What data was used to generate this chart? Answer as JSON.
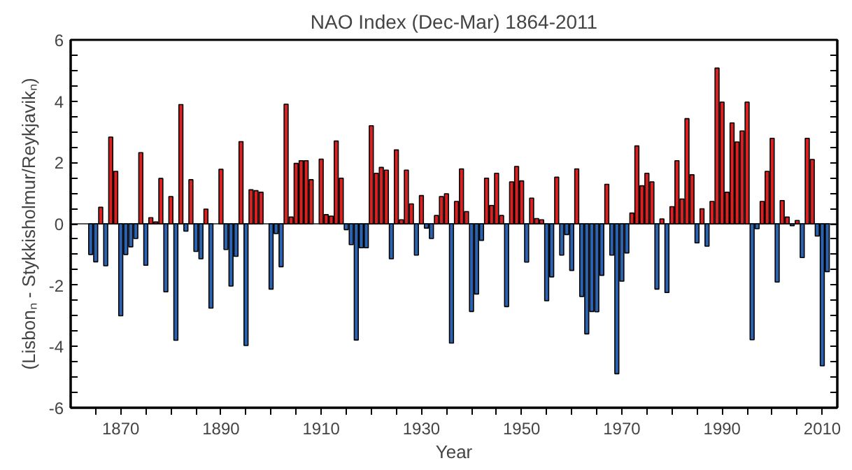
{
  "chart_data": {
    "type": "bar",
    "title": "NAO Index (Dec-Mar) 1864-2011",
    "xlabel": "Year",
    "ylabel": "(Lisbonₙ - Stykkisholmur/Reykjavikₙ)",
    "x": [
      1864,
      1865,
      1866,
      1867,
      1868,
      1869,
      1870,
      1871,
      1872,
      1873,
      1874,
      1875,
      1876,
      1877,
      1878,
      1879,
      1880,
      1881,
      1882,
      1883,
      1884,
      1885,
      1886,
      1887,
      1888,
      1889,
      1890,
      1891,
      1892,
      1893,
      1894,
      1895,
      1896,
      1897,
      1898,
      1899,
      1900,
      1901,
      1902,
      1903,
      1904,
      1905,
      1906,
      1907,
      1908,
      1909,
      1910,
      1911,
      1912,
      1913,
      1914,
      1915,
      1916,
      1917,
      1918,
      1919,
      1920,
      1921,
      1922,
      1923,
      1924,
      1925,
      1926,
      1927,
      1928,
      1929,
      1930,
      1931,
      1932,
      1933,
      1934,
      1935,
      1936,
      1937,
      1938,
      1939,
      1940,
      1941,
      1942,
      1943,
      1944,
      1945,
      1946,
      1947,
      1948,
      1949,
      1950,
      1951,
      1952,
      1953,
      1954,
      1955,
      1956,
      1957,
      1958,
      1959,
      1960,
      1961,
      1962,
      1963,
      1964,
      1965,
      1966,
      1967,
      1968,
      1969,
      1970,
      1971,
      1972,
      1973,
      1974,
      1975,
      1976,
      1977,
      1978,
      1979,
      1980,
      1981,
      1982,
      1983,
      1984,
      1985,
      1986,
      1987,
      1988,
      1989,
      1990,
      1991,
      1992,
      1993,
      1994,
      1995,
      1996,
      1997,
      1998,
      1999,
      2000,
      2001,
      2002,
      2003,
      2004,
      2005,
      2006,
      2007,
      2008,
      2009,
      2010,
      2011
    ],
    "values": [
      -1.0,
      -1.24,
      0.54,
      -1.37,
      2.83,
      1.71,
      -3.0,
      -1.0,
      -0.75,
      -0.48,
      2.32,
      -1.35,
      0.2,
      0.06,
      1.48,
      -2.22,
      0.89,
      -3.8,
      3.89,
      -0.24,
      1.44,
      -0.9,
      -1.14,
      0.48,
      -2.75,
      null,
      1.78,
      -0.84,
      -2.03,
      -1.06,
      2.68,
      -3.97,
      1.11,
      1.08,
      1.03,
      null,
      -2.13,
      -0.32,
      -1.4,
      3.9,
      0.22,
      1.97,
      2.06,
      2.06,
      1.44,
      null,
      2.11,
      0.3,
      0.25,
      2.7,
      1.49,
      -0.19,
      -0.68,
      -3.79,
      -0.78,
      -0.78,
      3.2,
      1.65,
      1.84,
      1.75,
      -1.14,
      2.41,
      0.13,
      1.75,
      0.65,
      -1.02,
      0.92,
      -0.14,
      -0.48,
      0.27,
      0.89,
      0.98,
      -3.89,
      0.73,
      1.79,
      0.4,
      -2.86,
      -2.29,
      -0.54,
      1.49,
      0.6,
      1.65,
      0.27,
      -2.7,
      1.37,
      1.87,
      1.4,
      -1.25,
      0.84,
      0.17,
      0.13,
      -2.51,
      -1.73,
      1.52,
      -1.02,
      -0.35,
      -1.52,
      1.79,
      -2.37,
      -3.59,
      -2.86,
      -2.87,
      -1.68,
      1.29,
      -1.02,
      -4.89,
      -1.87,
      -0.95,
      0.35,
      2.54,
      1.24,
      1.65,
      1.37,
      -2.13,
      0.16,
      -2.24,
      0.56,
      2.06,
      0.81,
      3.43,
      1.6,
      -0.62,
      0.49,
      -0.73,
      0.73,
      5.08,
      3.97,
      1.03,
      3.29,
      2.67,
      3.03,
      3.97,
      -3.78,
      -0.16,
      0.73,
      1.71,
      2.79,
      -1.9,
      0.76,
      0.22,
      -0.06,
      0.11,
      -1.1,
      2.79,
      2.1,
      -0.4,
      -4.63,
      -1.56
    ],
    "colors": [
      "#2b63b0",
      "#2b63b0",
      "#d92121",
      "#2b63b0",
      "#d92121",
      "#d92121",
      "#2b63b0",
      "#2b63b0",
      "#2b63b0",
      "#2b63b0",
      "#d92121",
      "#2b63b0",
      "#d92121",
      "#d92121",
      "#d92121",
      "#2b63b0",
      "#d92121",
      "#2b63b0",
      "#d92121",
      "#2b63b0",
      "#d92121",
      "#2b63b0",
      "#2b63b0",
      "#d92121",
      "#2b63b0",
      "#d92121",
      "#d92121",
      "#2b63b0",
      "#2b63b0",
      "#2b63b0",
      "#d92121",
      "#2b63b0",
      "#d92121",
      "#d92121",
      "#d92121",
      "#d92121",
      "#2b63b0",
      "#2b63b0",
      "#2b63b0",
      "#d92121",
      "#d92121",
      "#d92121",
      "#d92121",
      "#d92121",
      "#d92121",
      "#d92121",
      "#d92121",
      "#d92121",
      "#d92121",
      "#d92121",
      "#d92121",
      "#2b63b0",
      "#2b63b0",
      "#2b63b0",
      "#2b63b0",
      "#2b63b0",
      "#d92121",
      "#d92121",
      "#d92121",
      "#d92121",
      "#2b63b0",
      "#d92121",
      "#d92121",
      "#d92121",
      "#d92121",
      "#2b63b0",
      "#d92121",
      "#2b63b0",
      "#2b63b0",
      "#d92121",
      "#d92121",
      "#d92121",
      "#2b63b0",
      "#d92121",
      "#d92121",
      "#d92121",
      "#2b63b0",
      "#2b63b0",
      "#2b63b0",
      "#d92121",
      "#d92121",
      "#d92121",
      "#d92121",
      "#2b63b0",
      "#d92121",
      "#d92121",
      "#d92121",
      "#2b63b0",
      "#d92121",
      "#d92121",
      "#d92121",
      "#2b63b0",
      "#2b63b0",
      "#d92121",
      "#2b63b0",
      "#2b63b0",
      "#2b63b0",
      "#d92121",
      "#2b63b0",
      "#2b63b0",
      "#2b63b0",
      "#2b63b0",
      "#2b63b0",
      "#d92121",
      "#2b63b0",
      "#2b63b0",
      "#2b63b0",
      "#2b63b0",
      "#d92121",
      "#d92121",
      "#d92121",
      "#d92121",
      "#d92121",
      "#2b63b0",
      "#d92121",
      "#2b63b0",
      "#d92121",
      "#d92121",
      "#d92121",
      "#d92121",
      "#d92121",
      "#2b63b0",
      "#d92121",
      "#2b63b0",
      "#d92121",
      "#d92121",
      "#d92121",
      "#d92121",
      "#d92121",
      "#d92121",
      "#d92121",
      "#d92121",
      "#2b63b0",
      "#2b63b0",
      "#d92121",
      "#d92121",
      "#d92121",
      "#2b63b0",
      "#d92121",
      "#d92121",
      "#2b63b0",
      "#d92121",
      "#2b63b0",
      "#d92121",
      "#d92121",
      "#2b63b0",
      "#2b63b0",
      "#2b63b0"
    ],
    "xlim": [
      1860,
      2013
    ],
    "xticks": [
      {
        "value": 1865,
        "label": null
      },
      1870,
      {
        "value": 1875,
        "label": null
      },
      {
        "value": 1880,
        "label": null
      },
      {
        "value": 1885,
        "label": null
      },
      1890,
      {
        "value": 1895,
        "label": null
      },
      {
        "value": 1900,
        "label": null
      },
      {
        "value": 1905,
        "label": null
      },
      1910,
      {
        "value": 1915,
        "label": null
      },
      {
        "value": 1920,
        "label": null
      },
      {
        "value": 1925,
        "label": null
      },
      1930,
      {
        "value": 1935,
        "label": null
      },
      {
        "value": 1940,
        "label": null
      },
      {
        "value": 1945,
        "label": null
      },
      1950,
      {
        "value": 1955,
        "label": null
      },
      {
        "value": 1960,
        "label": null
      },
      {
        "value": 1965,
        "label": null
      },
      1970,
      {
        "value": 1975,
        "label": null
      },
      {
        "value": 1980,
        "label": null
      },
      {
        "value": 1985,
        "label": null
      },
      1990,
      {
        "value": 1995,
        "label": null
      },
      {
        "value": 2000,
        "label": null
      },
      {
        "value": 2005,
        "label": null
      },
      2010
    ],
    "ylim": [
      -6,
      6
    ],
    "yticks": [
      -6,
      {
        "value": -5.5,
        "label": null
      },
      {
        "value": -5,
        "label": null
      },
      {
        "value": -4.5,
        "label": null
      },
      -4,
      {
        "value": -3.5,
        "label": null
      },
      {
        "value": -3,
        "label": null
      },
      {
        "value": -2.5,
        "label": null
      },
      -2,
      {
        "value": -1.5,
        "label": null
      },
      {
        "value": -1,
        "label": null
      },
      {
        "value": -0.5,
        "label": null
      },
      0,
      {
        "value": 0.5,
        "label": null
      },
      {
        "value": 1,
        "label": null
      },
      {
        "value": 1.5,
        "label": null
      },
      2,
      {
        "value": 2.5,
        "label": null
      },
      {
        "value": 3,
        "label": null
      },
      {
        "value": 3.5,
        "label": null
      },
      4,
      {
        "value": 4.5,
        "label": null
      },
      {
        "value": 5,
        "label": null
      },
      {
        "value": 5.5,
        "label": null
      },
      6
    ],
    "grid": false,
    "ref_lines": [
      {
        "axis": "y",
        "value": 0,
        "color": "#555555"
      }
    ]
  }
}
